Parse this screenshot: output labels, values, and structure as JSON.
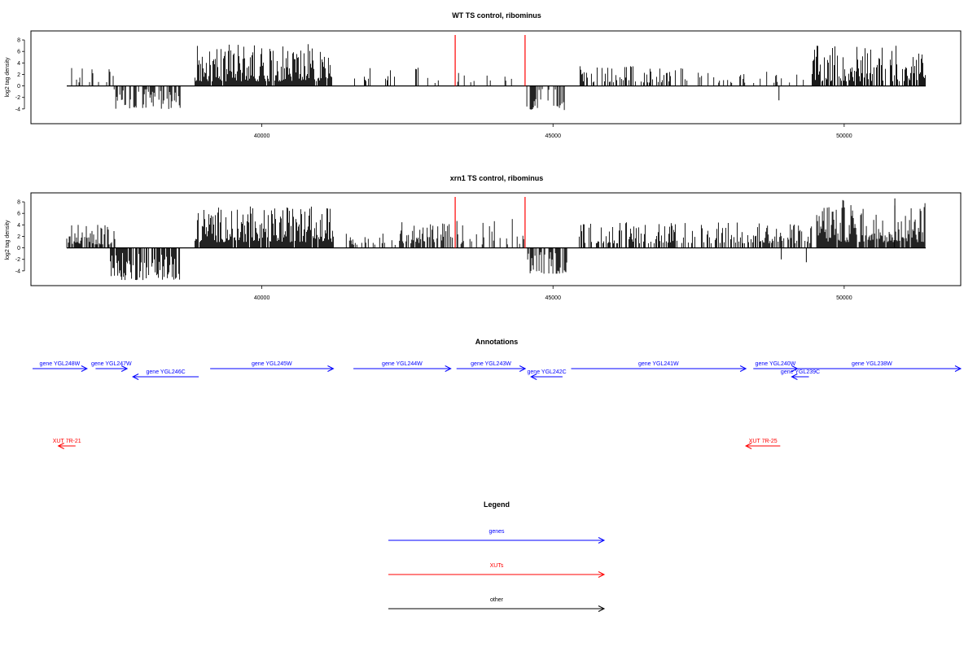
{
  "chart_data": [
    {
      "type": "bar",
      "title": "WT TS control, ribominus",
      "ylabel": "log2 tag density",
      "xlabel": "",
      "xlim": [
        36300,
        51900
      ],
      "ylim": [
        -6,
        9
      ],
      "x_ticks": [
        40000,
        45000,
        50000
      ],
      "y_ticks": [
        -4,
        -2,
        0,
        2,
        4,
        6,
        8
      ],
      "markers_x": [
        43320,
        44520
      ],
      "marker_color": "#ff0000",
      "segments": [
        {
          "x": [
            36650,
            37450
          ],
          "density": 0.3,
          "min": 0.6,
          "max": 3.2
        },
        {
          "x": [
            37450,
            38600
          ],
          "density": 0.55,
          "min": -4.0,
          "max": -0.5
        },
        {
          "x": [
            38850,
            41200
          ],
          "density": 0.95,
          "min": 0.8,
          "max": 7.3
        },
        {
          "x": [
            41550,
            42750
          ],
          "density": 0.25,
          "min": 0.8,
          "max": 3.2
        },
        {
          "x": [
            42750,
            43300
          ],
          "density": 0.15,
          "min": 0.5,
          "max": 1.8
        },
        {
          "x": [
            43350,
            44500
          ],
          "density": 0.12,
          "min": 0.6,
          "max": 2.5
        },
        {
          "x": [
            44550,
            45200
          ],
          "density": 0.6,
          "min": -4.2,
          "max": -0.5
        },
        {
          "x": [
            45450,
            47300
          ],
          "density": 0.35,
          "min": 0.6,
          "max": 3.5
        },
        {
          "x": [
            47300,
            49350
          ],
          "density": 0.2,
          "min": 0.5,
          "max": 2.5
        },
        {
          "x": [
            49450,
            51400
          ],
          "density": 0.75,
          "min": 0.8,
          "max": 7.0
        }
      ],
      "spikes": [
        {
          "x": 48880,
          "y": -2.5
        }
      ]
    },
    {
      "type": "bar",
      "title": "xrn1 TS control, ribominus",
      "ylabel": "log2 tag density",
      "xlabel": "",
      "xlim": [
        36300,
        51900
      ],
      "ylim": [
        -6,
        9
      ],
      "x_ticks": [
        40000,
        45000,
        50000
      ],
      "y_ticks": [
        -4,
        -2,
        0,
        2,
        4,
        6,
        8
      ],
      "markers_x": [
        43320,
        44520
      ],
      "marker_color": "#ff0000",
      "segments": [
        {
          "x": [
            36650,
            37500
          ],
          "density": 0.7,
          "min": 0.6,
          "max": 4.0
        },
        {
          "x": [
            37400,
            38600
          ],
          "density": 0.75,
          "min": -5.6,
          "max": -0.8
        },
        {
          "x": [
            38850,
            41250
          ],
          "density": 0.95,
          "min": 1.0,
          "max": 7.2
        },
        {
          "x": [
            41450,
            42350
          ],
          "density": 0.35,
          "min": 0.5,
          "max": 2.5
        },
        {
          "x": [
            42350,
            43300
          ],
          "density": 0.6,
          "min": 0.8,
          "max": 4.5
        },
        {
          "x": [
            43350,
            44500
          ],
          "density": 0.35,
          "min": 0.6,
          "max": 5.2
        },
        {
          "x": [
            44550,
            45250
          ],
          "density": 0.65,
          "min": -4.5,
          "max": -0.5
        },
        {
          "x": [
            45450,
            48600
          ],
          "density": 0.5,
          "min": 0.8,
          "max": 4.5
        },
        {
          "x": [
            48600,
            49500
          ],
          "density": 0.6,
          "min": 0.8,
          "max": 4.5
        },
        {
          "x": [
            49500,
            51400
          ],
          "density": 0.9,
          "min": 1.0,
          "max": 8.5
        }
      ],
      "spikes": [
        {
          "x": 48920,
          "y": -2.0
        },
        {
          "x": 49350,
          "y": -2.5
        },
        {
          "x": 50870,
          "y": 8.6
        }
      ]
    }
  ],
  "annotations": {
    "title": "Annotations",
    "axis_range": [
      36300,
      52500
    ],
    "genes": [
      {
        "label": "gene YGL248W",
        "start": 36300,
        "end": 37250,
        "dir": "right",
        "row": 0
      },
      {
        "label": "gene YGL247W",
        "start": 37400,
        "end": 37950,
        "dir": "right",
        "row": 0
      },
      {
        "label": "gene YGL246C",
        "start": 38050,
        "end": 39200,
        "dir": "left",
        "row": 1
      },
      {
        "label": "gene YGL245W",
        "start": 39400,
        "end": 41550,
        "dir": "right",
        "row": 0
      },
      {
        "label": "gene YGL244W",
        "start": 41900,
        "end": 43600,
        "dir": "right",
        "row": 0
      },
      {
        "label": "gene YGL243W",
        "start": 43700,
        "end": 44900,
        "dir": "right",
        "row": 0
      },
      {
        "label": "gene YGL242C",
        "start": 45000,
        "end": 45550,
        "dir": "left",
        "row": 1
      },
      {
        "label": "gene YGL241W",
        "start": 45700,
        "end": 48750,
        "dir": "right",
        "row": 0
      },
      {
        "label": "gene YGL240W",
        "start": 48880,
        "end": 49650,
        "dir": "right",
        "row": 0
      },
      {
        "label": "gene YGL239C",
        "start": 49550,
        "end": 49850,
        "dir": "left",
        "row": 1
      },
      {
        "label": "gene YGL238W",
        "start": 49400,
        "end": 52500,
        "dir": "right",
        "row": 0
      }
    ],
    "xuts": [
      {
        "label": "XUT 7R-21",
        "start": 36750,
        "end": 37050,
        "dir": "left"
      },
      {
        "label": "XUT 7R-25",
        "start": 48750,
        "end": 49350,
        "dir": "left"
      }
    ]
  },
  "legend": {
    "title": "Legend",
    "items": [
      {
        "label": "genes",
        "color": "#0000ff"
      },
      {
        "label": "XUTs",
        "color": "#ff0000"
      },
      {
        "label": "other",
        "color": "#000000"
      }
    ]
  }
}
